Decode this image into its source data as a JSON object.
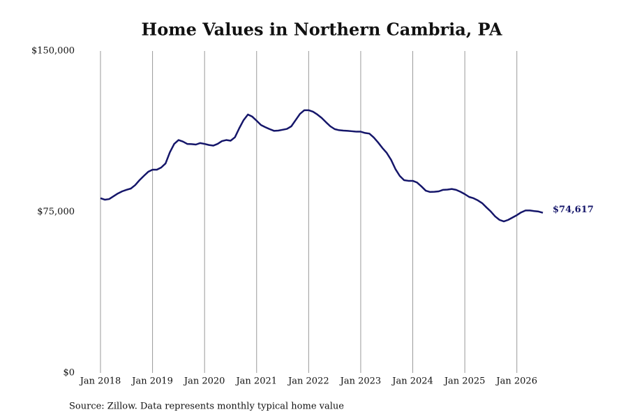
{
  "chart_data": {
    "type": "line",
    "title": "Home Values in Northern Cambria, PA",
    "source": "Source: Zillow. Data represents monthly typical home value",
    "x": [
      "2018-01",
      "2018-02",
      "2018-03",
      "2018-04",
      "2018-05",
      "2018-06",
      "2018-07",
      "2018-08",
      "2018-09",
      "2018-10",
      "2018-11",
      "2018-12",
      "2019-01",
      "2019-02",
      "2019-03",
      "2019-04",
      "2019-05",
      "2019-06",
      "2019-07",
      "2019-08",
      "2019-09",
      "2019-10",
      "2019-11",
      "2019-12",
      "2020-01",
      "2020-02",
      "2020-03",
      "2020-04",
      "2020-05",
      "2020-06",
      "2020-07",
      "2020-08",
      "2020-09",
      "2020-10",
      "2020-11",
      "2020-12",
      "2021-01",
      "2021-02",
      "2021-03",
      "2021-04",
      "2021-05",
      "2021-06",
      "2021-07",
      "2021-08",
      "2021-09",
      "2021-10",
      "2021-11",
      "2021-12",
      "2022-01",
      "2022-02",
      "2022-03",
      "2022-04",
      "2022-05",
      "2022-06",
      "2022-07",
      "2022-08",
      "2022-09",
      "2022-10",
      "2022-11",
      "2022-12",
      "2023-01",
      "2023-02",
      "2023-03",
      "2023-04",
      "2023-05",
      "2023-06",
      "2023-07",
      "2023-08",
      "2023-09",
      "2023-10",
      "2023-11",
      "2023-12",
      "2024-01",
      "2024-02",
      "2024-03",
      "2024-04",
      "2024-05",
      "2024-06",
      "2024-07",
      "2024-08",
      "2024-09",
      "2024-10",
      "2024-11",
      "2024-12",
      "2025-01",
      "2025-02",
      "2025-03",
      "2025-04",
      "2025-05",
      "2025-06",
      "2025-07",
      "2025-08",
      "2025-09",
      "2025-10",
      "2025-11",
      "2025-12",
      "2026-01",
      "2026-02",
      "2026-03",
      "2026-04",
      "2026-05",
      "2026-06",
      "2026-07"
    ],
    "series": [
      {
        "name": "Typical home value",
        "color": "#15166a",
        "values": [
          81400,
          80700,
          81000,
          82300,
          83600,
          84600,
          85300,
          85900,
          87500,
          89800,
          91800,
          93700,
          94700,
          94700,
          95700,
          97600,
          102800,
          106700,
          108500,
          107800,
          106700,
          106600,
          106400,
          107100,
          106700,
          106200,
          105900,
          106700,
          108000,
          108500,
          108200,
          109800,
          114000,
          117800,
          120400,
          119400,
          117500,
          115500,
          114500,
          113600,
          112800,
          112900,
          113300,
          113700,
          114900,
          117800,
          120700,
          122400,
          122400,
          121700,
          120400,
          118800,
          116800,
          114900,
          113600,
          113100,
          112900,
          112800,
          112600,
          112400,
          112400,
          111800,
          111500,
          109700,
          107400,
          104800,
          102500,
          99300,
          95000,
          91800,
          89800,
          89500,
          89500,
          88700,
          86900,
          84900,
          84300,
          84400,
          84600,
          85300,
          85400,
          85700,
          85300,
          84400,
          83300,
          82000,
          81400,
          80400,
          79100,
          77100,
          75200,
          72900,
          71300,
          70600,
          71300,
          72400,
          73500,
          74800,
          75700,
          75700,
          75400,
          75200,
          74617
        ],
        "value_labels": [
          null,
          null,
          null,
          null,
          null,
          null,
          null,
          null,
          null,
          null,
          null,
          null,
          null,
          null,
          null,
          null,
          null,
          null,
          null,
          null,
          null,
          null,
          null,
          null,
          null,
          null,
          null,
          null,
          null,
          null,
          null,
          null,
          null,
          null,
          null,
          null,
          null,
          null,
          null,
          null,
          null,
          null,
          null,
          null,
          null,
          null,
          null,
          null,
          null,
          null,
          null,
          null,
          null,
          null,
          null,
          null,
          null,
          null,
          null,
          null,
          null,
          null,
          null,
          null,
          null,
          null,
          null,
          null,
          null,
          null,
          null,
          null,
          null,
          null,
          null,
          null,
          null,
          null,
          null,
          null,
          null,
          null,
          null,
          null,
          null,
          null,
          null,
          null,
          null,
          null,
          null,
          null,
          null,
          null,
          null,
          null,
          null,
          null,
          null,
          null,
          null,
          null,
          "$74,617"
        ]
      }
    ],
    "xlim": [
      "2018-01",
      "2026-07"
    ],
    "xticks": [
      {
        "value": "2018-01",
        "label": "Jan 2018"
      },
      {
        "value": "2019-01",
        "label": "Jan 2019"
      },
      {
        "value": "2020-01",
        "label": "Jan 2020"
      },
      {
        "value": "2021-01",
        "label": "Jan 2021"
      },
      {
        "value": "2022-01",
        "label": "Jan 2022"
      },
      {
        "value": "2023-01",
        "label": "Jan 2023"
      },
      {
        "value": "2024-01",
        "label": "Jan 2024"
      },
      {
        "value": "2025-01",
        "label": "Jan 2025"
      },
      {
        "value": "2026-01",
        "label": "Jan 2026"
      }
    ],
    "ylim": [
      0,
      150000
    ],
    "yticks": [
      {
        "value": 0,
        "label": "$0"
      },
      {
        "value": 75000,
        "label": "$75,000"
      },
      {
        "value": 150000,
        "label": "$150,000"
      }
    ],
    "grid": "x"
  }
}
